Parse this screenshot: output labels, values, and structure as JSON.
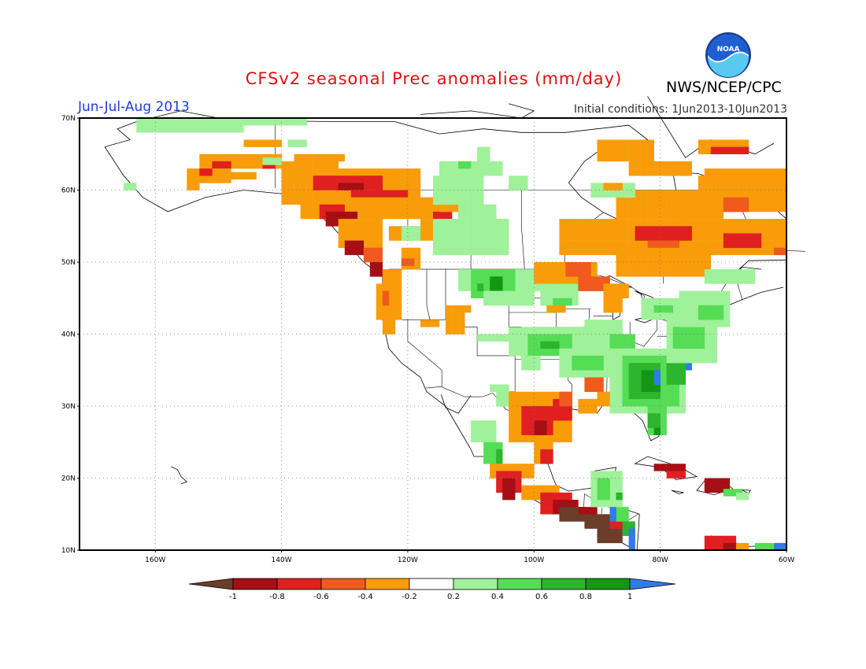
{
  "header": {
    "title": "CFSv2 seasonal Prec anomalies (mm/day)",
    "period": "Jun-Jul-Aug 2013",
    "initial_conditions": "Initial conditions: 1Jun2013-10Jun2013",
    "agency": "NWS/NCEP/CPC",
    "logo_text": "NOAA"
  },
  "map": {
    "lon_range": [
      -172,
      -60
    ],
    "lat_range": [
      10,
      70
    ],
    "lat_labels": [
      "70N",
      "60N",
      "50N",
      "40N",
      "30N",
      "20N",
      "10N"
    ],
    "lon_labels": [
      "160W",
      "140W",
      "120W",
      "100W",
      "80W",
      "60W"
    ]
  },
  "legend": {
    "labels": [
      "-1",
      "-0.8",
      "-0.6",
      "-0.4",
      "-0.2",
      "0.2",
      "0.4",
      "0.6",
      "0.8",
      "1"
    ],
    "colors": [
      "#6b3d2a",
      "#a50f15",
      "#e02020",
      "#f05a1e",
      "#f99c0a",
      "#ffffff",
      "#9ff19a",
      "#55dd55",
      "#2db52d",
      "#159615",
      "#2f7be8"
    ]
  }
}
